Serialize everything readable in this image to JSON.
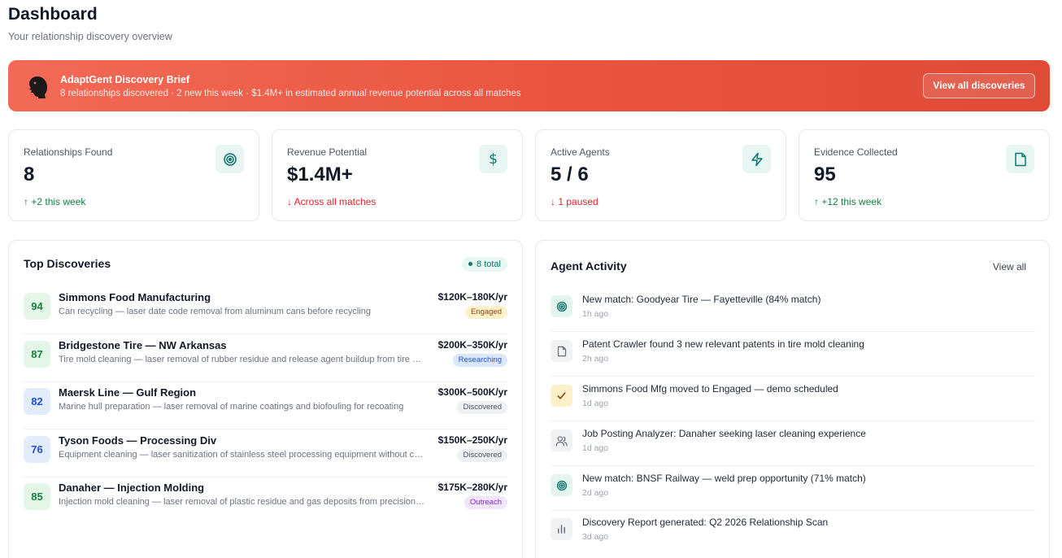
{
  "header": {
    "title": "Dashboard",
    "subtitle": "Your relationship discovery overview"
  },
  "banner": {
    "title": "AdaptGent Discovery Brief",
    "text": "8 relationships discovered · 2 new this week · $1.4M+ in estimated annual revenue potential across all matches",
    "button_label": "View all discoveries",
    "logo_icon": "agent-silhouette-icon"
  },
  "stats": [
    {
      "label": "Relationships Found",
      "value": "8",
      "delta": "+2 this week",
      "trend": "up",
      "icon": "target-icon"
    },
    {
      "label": "Revenue Potential",
      "value": "$1.4M+",
      "delta": "Across all matches",
      "trend": "down",
      "icon": "dollar-icon"
    },
    {
      "label": "Active Agents",
      "value": "5 / 6",
      "delta": "1 paused",
      "trend": "down",
      "icon": "lightning-icon"
    },
    {
      "label": "Evidence Collected",
      "value": "95",
      "delta": "+12 this week",
      "trend": "up",
      "icon": "document-icon"
    }
  ],
  "discoveries": {
    "title": "Top Discoveries",
    "total_label": "8 total",
    "items": [
      {
        "score": "94",
        "name": "Simmons Food Manufacturing",
        "desc": "Can recycling — laser date code removal from aluminum cans before recycling",
        "revenue": "$120K–180K/yr",
        "status": "Engaged"
      },
      {
        "score": "87",
        "name": "Bridgestone Tire — NW Arkansas",
        "desc": "Tire mold cleaning — laser removal of rubber residue and release agent buildup from tire molds",
        "revenue": "$200K–350K/yr",
        "status": "Researching"
      },
      {
        "score": "82",
        "name": "Maersk Line — Gulf Region",
        "desc": "Marine hull preparation — laser removal of marine coatings and biofouling for recoating",
        "revenue": "$300K–500K/yr",
        "status": "Discovered"
      },
      {
        "score": "76",
        "name": "Tyson Foods — Processing Div",
        "desc": "Equipment cleaning — laser sanitization of stainless steel processing equipment without chemicals",
        "revenue": "$150K–250K/yr",
        "status": "Discovered"
      },
      {
        "score": "85",
        "name": "Danaher — Injection Molding",
        "desc": "Injection mold cleaning — laser removal of plastic residue and gas deposits from precision molds",
        "revenue": "$175K–280K/yr",
        "status": "Outreach"
      }
    ]
  },
  "activity": {
    "title": "Agent Activity",
    "view_all_label": "View all",
    "items": [
      {
        "icon": "target-icon",
        "text": "New match: Goodyear Tire — Fayetteville (84% match)",
        "time": "1h ago"
      },
      {
        "icon": "document-icon",
        "text": "Patent Crawler found 3 new relevant patents in tire mold cleaning",
        "time": "2h ago"
      },
      {
        "icon": "check-icon",
        "text": "Simmons Food Mfg moved to Engaged — demo scheduled",
        "time": "1d ago"
      },
      {
        "icon": "users-icon",
        "text": "Job Posting Analyzer: Danaher seeking laser cleaning experience",
        "time": "1d ago"
      },
      {
        "icon": "target-icon",
        "text": "New match: BNSF Railway — weld prep opportunity (71% match)",
        "time": "2d ago"
      },
      {
        "icon": "bar-chart-icon",
        "text": "Discovery Report generated: Q2 2026 Relationship Scan",
        "time": "3d ago"
      }
    ]
  },
  "colors": {
    "banner_start": "#f26a56",
    "banner_end": "#df4b37",
    "accent_teal": "#0f766e",
    "up": "#15803d",
    "down": "#dc2626"
  }
}
